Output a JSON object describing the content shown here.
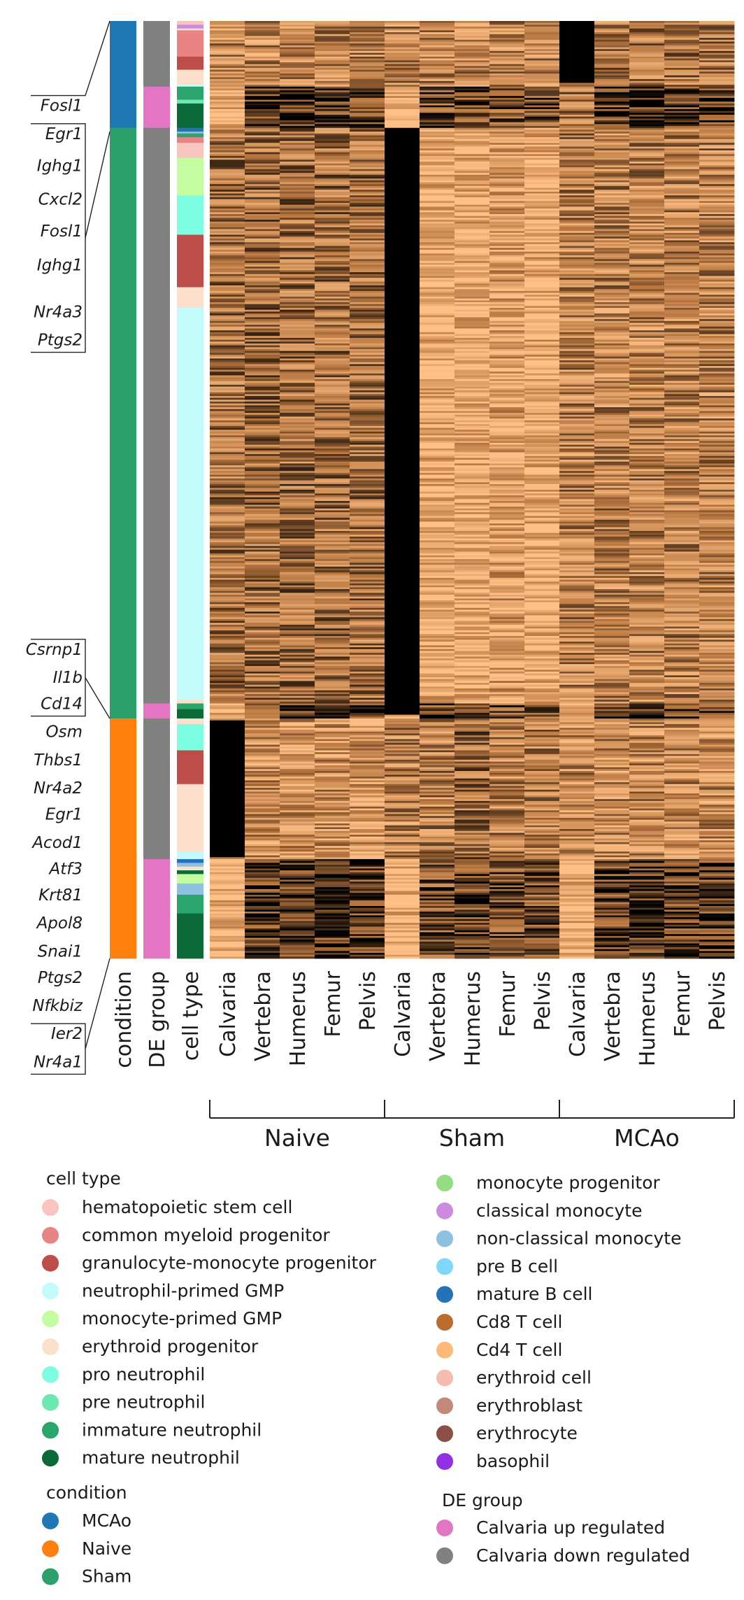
{
  "chart_data": {
    "type": "heatmap",
    "title": "",
    "n_gene_rows": 500,
    "columns": [
      "Calvaria",
      "Vertebra",
      "Humerus",
      "Femur",
      "Pelvis",
      "Calvaria",
      "Vertebra",
      "Humerus",
      "Femur",
      "Pelvis",
      "Calvaria",
      "Vertebra",
      "Humerus",
      "Femur",
      "Pelvis"
    ],
    "column_groups": [
      {
        "label": "Naive",
        "start": 0,
        "end": 4
      },
      {
        "label": "Sham",
        "start": 5,
        "end": 9
      },
      {
        "label": "MCAo",
        "start": 10,
        "end": 14
      }
    ],
    "annotation_tracks": [
      "condition",
      "DE group",
      "cell type"
    ],
    "gene_labels": [
      {
        "text": "Fosl1",
        "row": 45
      },
      {
        "text": "Egr1",
        "row": 60
      },
      {
        "text": "Ighg1",
        "row": 77
      },
      {
        "text": "Cxcl2",
        "row": 95
      },
      {
        "text": "Fosl1",
        "row": 112
      },
      {
        "text": "Ighg1",
        "row": 130
      },
      {
        "text": "Nr4a3",
        "row": 155
      },
      {
        "text": "Ptgs2",
        "row": 170
      },
      {
        "text": "Csrnp1",
        "row": 335
      },
      {
        "text": "Il1b",
        "row": 350
      },
      {
        "text": "Cd14",
        "row": 364
      },
      {
        "text": "Osm",
        "row": 379
      },
      {
        "text": "Thbs1",
        "row": 394
      },
      {
        "text": "Nr4a2",
        "row": 409
      },
      {
        "text": "Egr1",
        "row": 423
      },
      {
        "text": "Acod1",
        "row": 438
      },
      {
        "text": "Atf3",
        "row": 452
      },
      {
        "text": "Krt81",
        "row": 466
      },
      {
        "text": "Apol8",
        "row": 481
      },
      {
        "text": "Snai1",
        "row": 496
      },
      {
        "text": "Ptgs2",
        "row": 510
      },
      {
        "text": "Nfkbiz",
        "row": 525
      },
      {
        "text": "Ier2",
        "row": 540
      },
      {
        "text": "Nr4a1",
        "row": 555
      }
    ],
    "bracket_labels": [
      {
        "first_label": 0,
        "last_label": 0,
        "target_row": 0
      },
      {
        "first_label": 1,
        "last_label": 7,
        "target_row": 59
      },
      {
        "first_label": 8,
        "last_label": 10,
        "target_row": 372
      },
      {
        "first_label": 22,
        "last_label": 23,
        "target_row": 500
      }
    ],
    "condition_blocks": [
      {
        "label": "MCAo",
        "start": 0,
        "end": 57
      },
      {
        "label": "Sham",
        "start": 57,
        "end": 372
      },
      {
        "label": "Naive",
        "start": 372,
        "end": 500
      }
    ],
    "de_group_blocks": [
      {
        "label": "Calvaria down regulated",
        "start": 0,
        "end": 35
      },
      {
        "label": "Calvaria up regulated",
        "start": 35,
        "end": 57
      },
      {
        "label": "Calvaria down regulated",
        "start": 57,
        "end": 364
      },
      {
        "label": "Calvaria up regulated",
        "start": 364,
        "end": 372
      },
      {
        "label": "Calvaria down regulated",
        "start": 372,
        "end": 447
      },
      {
        "label": "Calvaria up regulated",
        "start": 447,
        "end": 500
      }
    ],
    "celltype_blocks": [
      {
        "label": "hematopoietic stem cell",
        "start": 0,
        "end": 2
      },
      {
        "label": "classical monocyte",
        "start": 2,
        "end": 4
      },
      {
        "label": "erythroid progenitor",
        "start": 4,
        "end": 5
      },
      {
        "label": "common myeloid progenitor",
        "start": 5,
        "end": 19
      },
      {
        "label": "granulocyte-monocyte progenitor",
        "start": 19,
        "end": 26
      },
      {
        "label": "erythroid progenitor",
        "start": 26,
        "end": 34
      },
      {
        "label": "neutrophil-primed GMP",
        "start": 34,
        "end": 35
      },
      {
        "label": "immature neutrophil",
        "start": 35,
        "end": 42
      },
      {
        "label": "pre neutrophil",
        "start": 42,
        "end": 44
      },
      {
        "label": "mature neutrophil",
        "start": 44,
        "end": 57
      },
      {
        "label": "mature B cell",
        "start": 57,
        "end": 59
      },
      {
        "label": "non-classical monocyte",
        "start": 59,
        "end": 60
      },
      {
        "label": "immature neutrophil",
        "start": 60,
        "end": 62
      },
      {
        "label": "common myeloid progenitor",
        "start": 62,
        "end": 65
      },
      {
        "label": "hematopoietic stem cell",
        "start": 65,
        "end": 73
      },
      {
        "label": "monocyte-primed GMP",
        "start": 73,
        "end": 93
      },
      {
        "label": "pro neutrophil",
        "start": 93,
        "end": 114
      },
      {
        "label": "granulocyte-monocyte progenitor",
        "start": 114,
        "end": 142
      },
      {
        "label": "erythroid progenitor",
        "start": 142,
        "end": 153
      },
      {
        "label": "neutrophil-primed GMP",
        "start": 153,
        "end": 362
      },
      {
        "label": "erythroid progenitor",
        "start": 362,
        "end": 364
      },
      {
        "label": "immature neutrophil",
        "start": 364,
        "end": 367
      },
      {
        "label": "mature neutrophil",
        "start": 367,
        "end": 372
      },
      {
        "label": "erythroid progenitor",
        "start": 372,
        "end": 375
      },
      {
        "label": "pro neutrophil",
        "start": 375,
        "end": 389
      },
      {
        "label": "granulocyte-monocyte progenitor",
        "start": 389,
        "end": 407
      },
      {
        "label": "erythroid progenitor",
        "start": 407,
        "end": 443
      },
      {
        "label": "neutrophil-primed GMP",
        "start": 443,
        "end": 447
      },
      {
        "label": "mature B cell",
        "start": 447,
        "end": 449
      },
      {
        "label": "non-classical monocyte",
        "start": 449,
        "end": 451
      },
      {
        "label": "erythroid progenitor",
        "start": 451,
        "end": 453
      },
      {
        "label": "mature neutrophil",
        "start": 453,
        "end": 455
      },
      {
        "label": "monocyte-primed GMP",
        "start": 455,
        "end": 460
      },
      {
        "label": "non-classical monocyte",
        "start": 460,
        "end": 466
      },
      {
        "label": "immature neutrophil",
        "start": 466,
        "end": 476
      },
      {
        "label": "mature neutrophil",
        "start": 476,
        "end": 500
      }
    ],
    "dark_blocks": [
      {
        "column": 10,
        "start": 0,
        "end": 33
      },
      {
        "column": 5,
        "start": 57,
        "end": 370
      },
      {
        "column": 0,
        "start": 373,
        "end": 446
      }
    ],
    "colormap": {
      "name": "copper-like",
      "low": "#000000",
      "mid": "#b77640",
      "high": "#fec086"
    }
  },
  "legends": {
    "cell_type": {
      "title": "cell type",
      "left_items": [
        {
          "label": "hematopoietic stem cell",
          "color": "#f8c5c1"
        },
        {
          "label": "common myeloid progenitor",
          "color": "#e88483"
        },
        {
          "label": "granulocyte-monocyte progenitor",
          "color": "#bc4d4b"
        },
        {
          "label": "neutrophil-primed GMP",
          "color": "#c3fbfc"
        },
        {
          "label": "monocyte-primed GMP",
          "color": "#c5fca1"
        },
        {
          "label": "erythroid progenitor",
          "color": "#fde0cc"
        },
        {
          "label": "pro neutrophil",
          "color": "#7ffde3"
        },
        {
          "label": "pre neutrophil",
          "color": "#6de8b1"
        },
        {
          "label": "immature neutrophil",
          "color": "#2aa56c"
        },
        {
          "label": "mature neutrophil",
          "color": "#0a6b38"
        }
      ],
      "right_items": [
        {
          "label": "monocyte progenitor",
          "color": "#93de82"
        },
        {
          "label": "classical monocyte",
          "color": "#cc8be0"
        },
        {
          "label": "non-classical monocyte",
          "color": "#8ec0df"
        },
        {
          "label": "pre B cell",
          "color": "#7fd8fc"
        },
        {
          "label": "mature B cell",
          "color": "#2473b8"
        },
        {
          "label": "Cd8 T cell",
          "color": "#bb6d2d"
        },
        {
          "label": "Cd4 T cell",
          "color": "#fcb979"
        },
        {
          "label": "erythroid cell",
          "color": "#f6bcb0"
        },
        {
          "label": "erythroblast",
          "color": "#c18a7a"
        },
        {
          "label": "erythrocyte",
          "color": "#8a4f45"
        },
        {
          "label": "basophil",
          "color": "#9131e3"
        }
      ]
    },
    "condition": {
      "title": "condition",
      "items": [
        {
          "label": "MCAo",
          "color": "#1f77b4"
        },
        {
          "label": "Naive",
          "color": "#ff7f0e"
        },
        {
          "label": "Sham",
          "color": "#2ca06a"
        }
      ]
    },
    "de_group": {
      "title": "DE group",
      "items": [
        {
          "label": "Calvaria up regulated",
          "color": "#e376c2"
        },
        {
          "label": "Calvaria down regulated",
          "color": "#808080"
        }
      ]
    }
  },
  "colors": {
    "MCAo": "#1f77b4",
    "Naive": "#ff7f0e",
    "Sham": "#2ca06a",
    "Calvaria up regulated": "#e376c2",
    "Calvaria down regulated": "#808080"
  }
}
